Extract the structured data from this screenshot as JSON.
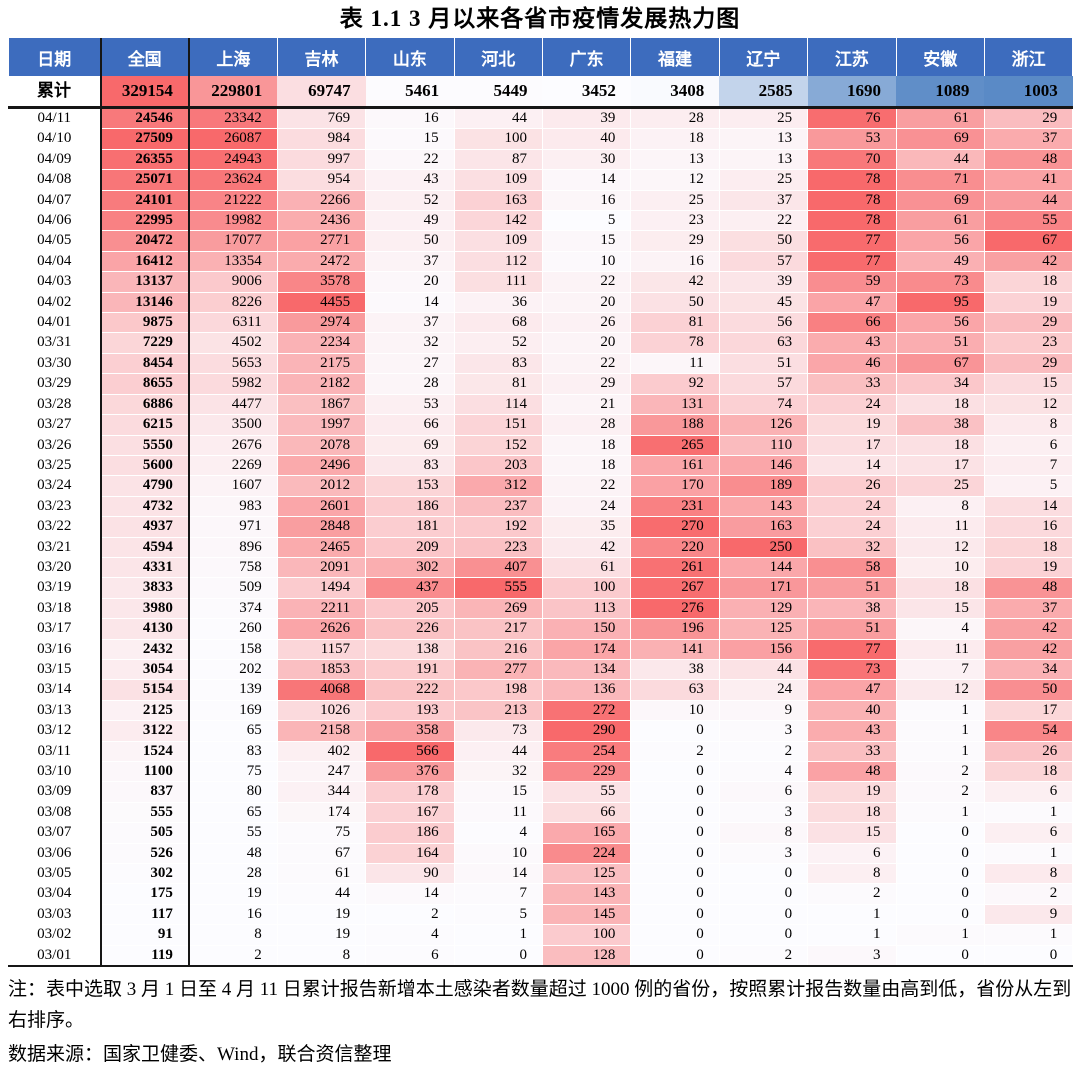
{
  "title": "表 1.1  3 月以来各省市疫情发展热力图",
  "note": "注：表中选取 3 月 1 日至 4 月 11 日累计报告新增本土感染者数量超过 1000 例的省份，按照累计报告数量由高到低，省份从左到右排序。",
  "source": "数据来源：国家卫健委、Wind，联合资信整理",
  "colors": {
    "header_bg": "#3D6CBE",
    "scale_high_red": "#F8696B",
    "scale_mid_white": "#FCFCFF",
    "scale_low_blue": "#5A8AC6",
    "structural_border": "#161616"
  },
  "chart_data": {
    "type": "heatmap",
    "title": "表 1.1  3 月以来各省市疫情发展热力图",
    "columns": [
      "日期",
      "全国",
      "上海",
      "吉林",
      "山东",
      "河北",
      "广东",
      "福建",
      "辽宁",
      "江苏",
      "安徽",
      "浙江"
    ],
    "cumulative_label": "累计",
    "cumulative_values": [
      329154,
      229801,
      69747,
      5461,
      5449,
      3452,
      3408,
      2585,
      1690,
      1089,
      1003
    ],
    "color_scale_note": "daily cells: per-column 2-color scale white(min)->red(max); cumulative row: 3-color scale blue(min)->white(median)->red(max)",
    "rows": [
      [
        "04/11",
        24546,
        23342,
        769,
        16,
        44,
        39,
        28,
        25,
        76,
        61,
        29
      ],
      [
        "04/10",
        27509,
        26087,
        984,
        15,
        100,
        40,
        18,
        13,
        53,
        69,
        37
      ],
      [
        "04/09",
        26355,
        24943,
        997,
        22,
        87,
        30,
        13,
        13,
        70,
        44,
        48
      ],
      [
        "04/08",
        25071,
        23624,
        954,
        43,
        109,
        14,
        12,
        25,
        78,
        71,
        41
      ],
      [
        "04/07",
        24101,
        21222,
        2266,
        52,
        163,
        16,
        25,
        37,
        78,
        69,
        44
      ],
      [
        "04/06",
        22995,
        19982,
        2436,
        49,
        142,
        5,
        23,
        22,
        78,
        61,
        55
      ],
      [
        "04/05",
        20472,
        17077,
        2771,
        50,
        109,
        15,
        29,
        50,
        77,
        56,
        67
      ],
      [
        "04/04",
        16412,
        13354,
        2472,
        37,
        112,
        10,
        16,
        57,
        77,
        49,
        42
      ],
      [
        "04/03",
        13137,
        9006,
        3578,
        20,
        111,
        22,
        42,
        39,
        59,
        73,
        18
      ],
      [
        "04/02",
        13146,
        8226,
        4455,
        14,
        36,
        20,
        50,
        45,
        47,
        95,
        19
      ],
      [
        "04/01",
        9875,
        6311,
        2974,
        37,
        68,
        26,
        81,
        56,
        66,
        56,
        29
      ],
      [
        "03/31",
        7229,
        4502,
        2234,
        32,
        52,
        20,
        78,
        63,
        43,
        51,
        23
      ],
      [
        "03/30",
        8454,
        5653,
        2175,
        27,
        83,
        22,
        11,
        51,
        46,
        67,
        29
      ],
      [
        "03/29",
        8655,
        5982,
        2182,
        28,
        81,
        29,
        92,
        57,
        33,
        34,
        15
      ],
      [
        "03/28",
        6886,
        4477,
        1867,
        53,
        114,
        21,
        131,
        74,
        24,
        18,
        12
      ],
      [
        "03/27",
        6215,
        3500,
        1997,
        66,
        151,
        28,
        188,
        126,
        19,
        38,
        8
      ],
      [
        "03/26",
        5550,
        2676,
        2078,
        69,
        152,
        18,
        265,
        110,
        17,
        18,
        6
      ],
      [
        "03/25",
        5600,
        2269,
        2496,
        83,
        203,
        18,
        161,
        146,
        14,
        17,
        7
      ],
      [
        "03/24",
        4790,
        1607,
        2012,
        153,
        312,
        22,
        170,
        189,
        26,
        25,
        5
      ],
      [
        "03/23",
        4732,
        983,
        2601,
        186,
        237,
        24,
        231,
        143,
        24,
        8,
        14
      ],
      [
        "03/22",
        4937,
        971,
        2848,
        181,
        192,
        35,
        270,
        163,
        24,
        11,
        16
      ],
      [
        "03/21",
        4594,
        896,
        2465,
        209,
        223,
        42,
        220,
        250,
        32,
        12,
        18
      ],
      [
        "03/20",
        4331,
        758,
        2091,
        302,
        407,
        61,
        261,
        144,
        58,
        10,
        19
      ],
      [
        "03/19",
        3833,
        509,
        1494,
        437,
        555,
        100,
        267,
        171,
        51,
        18,
        48
      ],
      [
        "03/18",
        3980,
        374,
        2211,
        205,
        269,
        113,
        276,
        129,
        38,
        15,
        37
      ],
      [
        "03/17",
        4130,
        260,
        2626,
        226,
        217,
        150,
        196,
        125,
        51,
        4,
        42
      ],
      [
        "03/16",
        2432,
        158,
        1157,
        138,
        216,
        174,
        141,
        156,
        77,
        11,
        42
      ],
      [
        "03/15",
        3054,
        202,
        1853,
        191,
        277,
        134,
        38,
        44,
        73,
        7,
        34
      ],
      [
        "03/14",
        5154,
        139,
        4068,
        222,
        198,
        136,
        63,
        24,
        47,
        12,
        50
      ],
      [
        "03/13",
        2125,
        169,
        1026,
        193,
        213,
        272,
        10,
        9,
        40,
        1,
        17
      ],
      [
        "03/12",
        3122,
        65,
        2158,
        358,
        73,
        290,
        0,
        3,
        43,
        1,
        54
      ],
      [
        "03/11",
        1524,
        83,
        402,
        566,
        44,
        254,
        2,
        2,
        33,
        1,
        26
      ],
      [
        "03/10",
        1100,
        75,
        247,
        376,
        32,
        229,
        0,
        4,
        48,
        2,
        18
      ],
      [
        "03/09",
        837,
        80,
        344,
        178,
        15,
        55,
        0,
        6,
        19,
        2,
        6
      ],
      [
        "03/08",
        555,
        65,
        174,
        167,
        11,
        66,
        0,
        3,
        18,
        1,
        1
      ],
      [
        "03/07",
        505,
        55,
        75,
        186,
        4,
        165,
        0,
        8,
        15,
        0,
        6
      ],
      [
        "03/06",
        526,
        48,
        67,
        164,
        10,
        224,
        0,
        3,
        6,
        0,
        1
      ],
      [
        "03/05",
        302,
        28,
        61,
        90,
        14,
        125,
        0,
        0,
        8,
        0,
        8
      ],
      [
        "03/04",
        175,
        19,
        44,
        14,
        7,
        143,
        0,
        0,
        2,
        0,
        2
      ],
      [
        "03/03",
        117,
        16,
        19,
        2,
        5,
        145,
        0,
        0,
        1,
        0,
        9
      ],
      [
        "03/02",
        91,
        8,
        19,
        4,
        1,
        100,
        0,
        0,
        1,
        1,
        1
      ],
      [
        "03/01",
        119,
        2,
        8,
        6,
        0,
        128,
        0,
        2,
        3,
        0,
        0
      ]
    ]
  }
}
